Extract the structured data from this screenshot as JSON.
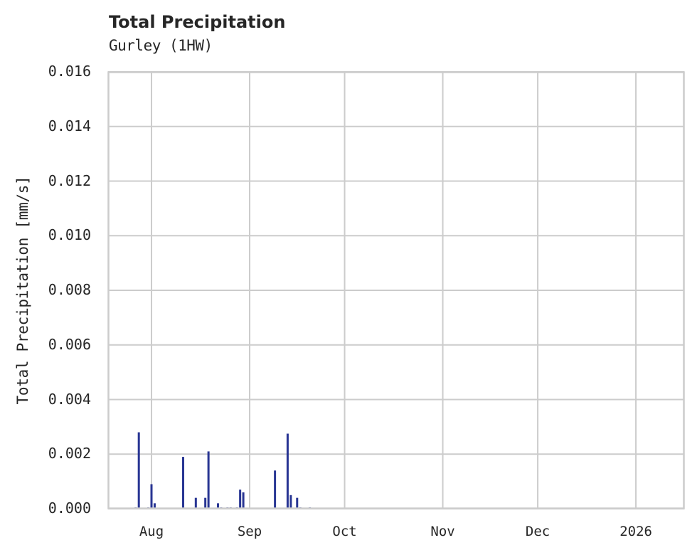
{
  "header": {
    "title": "Total Precipitation",
    "subtitle": "Gurley (1HW)"
  },
  "axes": {
    "ylabel": "Total Precipitation [mm/s]",
    "yticks": [
      "0.000",
      "0.002",
      "0.004",
      "0.006",
      "0.008",
      "0.010",
      "0.012",
      "0.014",
      "0.016"
    ],
    "xticks": [
      "Aug",
      "Sep",
      "Oct",
      "Nov",
      "Dec",
      "2026"
    ]
  },
  "colors": {
    "bar": "#283593",
    "grid": "#cccccc",
    "text": "#262626"
  },
  "chart_data": {
    "type": "bar",
    "title": "Total Precipitation",
    "subtitle": "Gurley (1HW)",
    "xlabel": "",
    "ylabel": "Total Precipitation [mm/s]",
    "ylim": [
      0,
      0.016
    ],
    "xlim": [
      "2025-07-18",
      "2026-01-15"
    ],
    "grid": true,
    "legend": null,
    "yticks": [
      0.0,
      0.002,
      0.004,
      0.006,
      0.008,
      0.01,
      0.012,
      0.014,
      0.016
    ],
    "xtick_labels": [
      "Aug",
      "Sep",
      "Oct",
      "Nov",
      "Dec",
      "2026"
    ],
    "xtick_dates": [
      "2025-08-01",
      "2025-09-01",
      "2025-10-01",
      "2025-11-01",
      "2025-12-01",
      "2026-01-01"
    ],
    "series": [
      {
        "name": "Total Precipitation",
        "x": [
          "2025-07-27",
          "2025-07-28",
          "2025-07-31",
          "2025-08-01",
          "2025-08-02",
          "2025-08-11",
          "2025-08-15",
          "2025-08-18",
          "2025-08-19",
          "2025-08-22",
          "2025-08-23",
          "2025-08-25",
          "2025-08-26",
          "2025-08-28",
          "2025-08-29",
          "2025-08-30",
          "2025-09-09",
          "2025-09-13",
          "2025-09-14",
          "2025-09-16",
          "2025-09-17",
          "2025-09-20"
        ],
        "values": [
          5e-05,
          0.0028,
          5e-05,
          0.0009,
          0.0002,
          0.0019,
          0.0004,
          0.0004,
          0.0021,
          0.0002,
          5e-05,
          5e-05,
          5e-05,
          5e-05,
          0.0007,
          0.0006,
          0.0014,
          0.00275,
          0.0005,
          0.0004,
          5e-05,
          5e-05
        ]
      }
    ]
  }
}
